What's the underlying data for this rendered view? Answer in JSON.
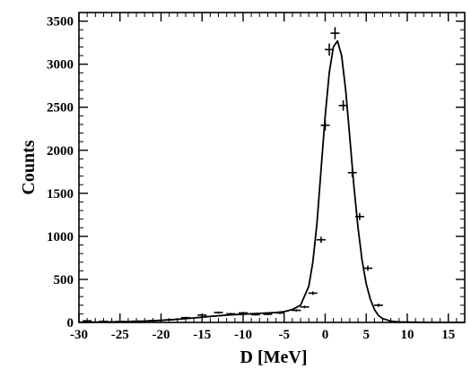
{
  "chart_data": {
    "type": "scatter",
    "title": "",
    "xlabel": "D [MeV]",
    "ylabel": "Counts",
    "xlim": [
      -30,
      17
    ],
    "ylim": [
      0,
      3600
    ],
    "grid": false,
    "x_ticks": [
      -30,
      -25,
      -20,
      -15,
      -10,
      -5,
      0,
      5,
      10,
      15
    ],
    "x_tick_labels": [
      "-30",
      "-25",
      "-20",
      "-15",
      "-10",
      "-5",
      "0",
      "5",
      "10",
      "15"
    ],
    "y_ticks": [
      0,
      500,
      1000,
      1500,
      2000,
      2500,
      3000,
      3500
    ],
    "y_tick_labels": [
      "0",
      "500",
      "1000",
      "1500",
      "2000",
      "2500",
      "3000",
      "3500"
    ],
    "series": [
      {
        "kind": "data_points_with_error_bars",
        "points": [
          {
            "x": -29,
            "y": 18,
            "err": 6
          },
          {
            "x": -27,
            "y": 12,
            "err": 5
          },
          {
            "x": -25,
            "y": 10,
            "err": 5
          },
          {
            "x": -23,
            "y": 14,
            "err": 5
          },
          {
            "x": -21,
            "y": 20,
            "err": 6
          },
          {
            "x": -19,
            "y": 30,
            "err": 7
          },
          {
            "x": -17,
            "y": 55,
            "err": 9
          },
          {
            "x": -15,
            "y": 85,
            "err": 10
          },
          {
            "x": -13,
            "y": 115,
            "err": 12
          },
          {
            "x": -11.5,
            "y": 100,
            "err": 11
          },
          {
            "x": -10,
            "y": 110,
            "err": 12
          },
          {
            "x": -8.5,
            "y": 90,
            "err": 11
          },
          {
            "x": -7,
            "y": 95,
            "err": 11
          },
          {
            "x": -5.5,
            "y": 110,
            "err": 12
          },
          {
            "x": -3.5,
            "y": 140,
            "err": 13
          },
          {
            "x": -2.5,
            "y": 180,
            "err": 14
          },
          {
            "x": -1.5,
            "y": 340,
            "err": 20
          },
          {
            "x": -0.5,
            "y": 960,
            "err": 35
          },
          {
            "x": 0.0,
            "y": 2290,
            "err": 60
          },
          {
            "x": 0.5,
            "y": 3170,
            "err": 70
          },
          {
            "x": 1.2,
            "y": 3360,
            "err": 70
          },
          {
            "x": 2.2,
            "y": 2520,
            "err": 60
          },
          {
            "x": 3.3,
            "y": 1740,
            "err": 50
          },
          {
            "x": 4.2,
            "y": 1230,
            "err": 40
          },
          {
            "x": 5.2,
            "y": 630,
            "err": 30
          },
          {
            "x": 6.5,
            "y": 200,
            "err": 18
          }
        ]
      },
      {
        "kind": "fit_curve",
        "x": [
          -30,
          -28,
          -26,
          -24,
          -22,
          -20,
          -18,
          -16,
          -14,
          -12,
          -10,
          -8,
          -6,
          -5,
          -4,
          -3,
          -2,
          -1.5,
          -1,
          -0.5,
          0,
          0.5,
          1,
          1.5,
          2,
          2.5,
          3,
          3.5,
          4,
          4.5,
          5,
          5.5,
          6,
          6.5,
          7,
          8,
          9,
          10,
          12,
          14,
          17
        ],
        "y": [
          2,
          4,
          6,
          10,
          16,
          24,
          36,
          52,
          70,
          85,
          96,
          105,
          115,
          125,
          150,
          200,
          420,
          700,
          1150,
          1780,
          2400,
          2900,
          3200,
          3270,
          3100,
          2700,
          2150,
          1580,
          1100,
          720,
          450,
          270,
          150,
          80,
          45,
          15,
          6,
          3,
          1,
          0,
          0
        ]
      }
    ]
  }
}
